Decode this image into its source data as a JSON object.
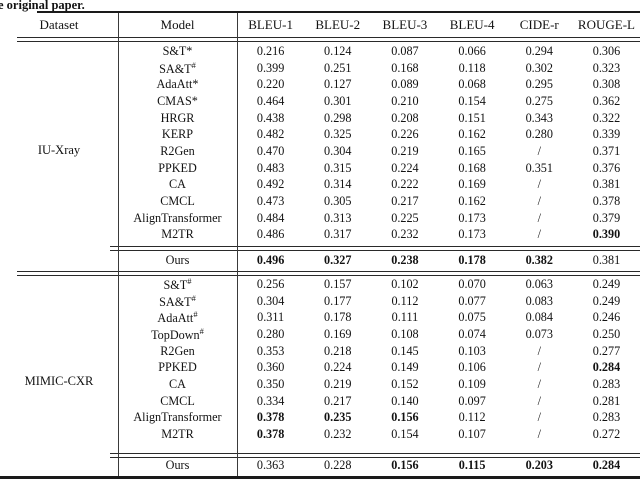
{
  "caption": "e original paper.",
  "table": {
    "columns": [
      "Dataset",
      "Model",
      "BLEU-1",
      "BLEU-2",
      "BLEU-3",
      "BLEU-4",
      "CIDE-r",
      "ROUGE-L"
    ],
    "sections": [
      {
        "dataset": "IU-Xray",
        "rows": [
          {
            "model": "S&T*",
            "sup": "",
            "values": [
              "0.216",
              "0.124",
              "0.087",
              "0.066",
              "0.294",
              "0.306"
            ],
            "bold": [
              0,
              0,
              0,
              0,
              0,
              0
            ]
          },
          {
            "model": "SA&T",
            "sup": "#",
            "values": [
              "0.399",
              "0.251",
              "0.168",
              "0.118",
              "0.302",
              "0.323"
            ],
            "bold": [
              0,
              0,
              0,
              0,
              0,
              0
            ]
          },
          {
            "model": "AdaAtt*",
            "sup": "",
            "values": [
              "0.220",
              "0.127",
              "0.089",
              "0.068",
              "0.295",
              "0.308"
            ],
            "bold": [
              0,
              0,
              0,
              0,
              0,
              0
            ]
          },
          {
            "model": "CMAS*",
            "sup": "",
            "values": [
              "0.464",
              "0.301",
              "0.210",
              "0.154",
              "0.275",
              "0.362"
            ],
            "bold": [
              0,
              0,
              0,
              0,
              0,
              0
            ]
          },
          {
            "model": "HRGR",
            "sup": "",
            "values": [
              "0.438",
              "0.298",
              "0.208",
              "0.151",
              "0.343",
              "0.322"
            ],
            "bold": [
              0,
              0,
              0,
              0,
              0,
              0
            ]
          },
          {
            "model": "KERP",
            "sup": "",
            "values": [
              "0.482",
              "0.325",
              "0.226",
              "0.162",
              "0.280",
              "0.339"
            ],
            "bold": [
              0,
              0,
              0,
              0,
              0,
              0
            ]
          },
          {
            "model": "R2Gen",
            "sup": "",
            "values": [
              "0.470",
              "0.304",
              "0.219",
              "0.165",
              "/",
              "0.371"
            ],
            "bold": [
              0,
              0,
              0,
              0,
              0,
              0
            ]
          },
          {
            "model": "PPKED",
            "sup": "",
            "values": [
              "0.483",
              "0.315",
              "0.224",
              "0.168",
              "0.351",
              "0.376"
            ],
            "bold": [
              0,
              0,
              0,
              0,
              0,
              0
            ]
          },
          {
            "model": "CA",
            "sup": "",
            "values": [
              "0.492",
              "0.314",
              "0.222",
              "0.169",
              "/",
              "0.381"
            ],
            "bold": [
              0,
              0,
              0,
              0,
              0,
              0
            ]
          },
          {
            "model": "CMCL",
            "sup": "",
            "values": [
              "0.473",
              "0.305",
              "0.217",
              "0.162",
              "/",
              "0.378"
            ],
            "bold": [
              0,
              0,
              0,
              0,
              0,
              0
            ]
          },
          {
            "model": "AlignTransformer",
            "sup": "",
            "values": [
              "0.484",
              "0.313",
              "0.225",
              "0.173",
              "/",
              "0.379"
            ],
            "bold": [
              0,
              0,
              0,
              0,
              0,
              0
            ]
          },
          {
            "model": "M2TR",
            "sup": "",
            "values": [
              "0.486",
              "0.317",
              "0.232",
              "0.173",
              "/",
              "0.390"
            ],
            "bold": [
              0,
              0,
              0,
              0,
              0,
              1
            ]
          }
        ],
        "ours": [
          {
            "model": "Ours",
            "sup": "",
            "values": [
              "0.496",
              "0.327",
              "0.238",
              "0.178",
              "0.382",
              "0.381"
            ],
            "bold": [
              1,
              1,
              1,
              1,
              1,
              0
            ]
          }
        ]
      },
      {
        "dataset": "MIMIC-CXR",
        "rows": [
          {
            "model": "S&T",
            "sup": "#",
            "values": [
              "0.256",
              "0.157",
              "0.102",
              "0.070",
              "0.063",
              "0.249"
            ],
            "bold": [
              0,
              0,
              0,
              0,
              0,
              0
            ]
          },
          {
            "model": "SA&T",
            "sup": "#",
            "values": [
              "0.304",
              "0.177",
              "0.112",
              "0.077",
              "0.083",
              "0.249"
            ],
            "bold": [
              0,
              0,
              0,
              0,
              0,
              0
            ]
          },
          {
            "model": "AdaAtt",
            "sup": "#",
            "values": [
              "0.311",
              "0.178",
              "0.111",
              "0.075",
              "0.084",
              "0.246"
            ],
            "bold": [
              0,
              0,
              0,
              0,
              0,
              0
            ]
          },
          {
            "model": "TopDown",
            "sup": "#",
            "values": [
              "0.280",
              "0.169",
              "0.108",
              "0.074",
              "0.073",
              "0.250"
            ],
            "bold": [
              0,
              0,
              0,
              0,
              0,
              0
            ]
          },
          {
            "model": "R2Gen",
            "sup": "",
            "values": [
              "0.353",
              "0.218",
              "0.145",
              "0.103",
              "/",
              "0.277"
            ],
            "bold": [
              0,
              0,
              0,
              0,
              0,
              0
            ]
          },
          {
            "model": "PPKED",
            "sup": "",
            "values": [
              "0.360",
              "0.224",
              "0.149",
              "0.106",
              "/",
              "0.284"
            ],
            "bold": [
              0,
              0,
              0,
              0,
              0,
              1
            ]
          },
          {
            "model": "CA",
            "sup": "",
            "values": [
              "0.350",
              "0.219",
              "0.152",
              "0.109",
              "/",
              "0.283"
            ],
            "bold": [
              0,
              0,
              0,
              0,
              0,
              0
            ]
          },
          {
            "model": "CMCL",
            "sup": "",
            "values": [
              "0.334",
              "0.217",
              "0.140",
              "0.097",
              "/",
              "0.281"
            ],
            "bold": [
              0,
              0,
              0,
              0,
              0,
              0
            ]
          },
          {
            "model": "AlignTransformer",
            "sup": "",
            "values": [
              "0.378",
              "0.235",
              "0.156",
              "0.112",
              "/",
              "0.283"
            ],
            "bold": [
              1,
              1,
              1,
              0,
              0,
              0
            ]
          },
          {
            "model": "M2TR",
            "sup": "",
            "values": [
              "0.378",
              "0.232",
              "0.154",
              "0.107",
              "/",
              "0.272"
            ],
            "bold": [
              1,
              0,
              0,
              0,
              0,
              0
            ]
          }
        ],
        "ours": [
          {
            "model": "Ours",
            "sup": "",
            "values": [
              "0.363",
              "0.228",
              "0.156",
              "0.115",
              "0.203",
              "0.284"
            ],
            "bold": [
              0,
              0,
              1,
              1,
              1,
              1
            ]
          }
        ]
      }
    ]
  }
}
